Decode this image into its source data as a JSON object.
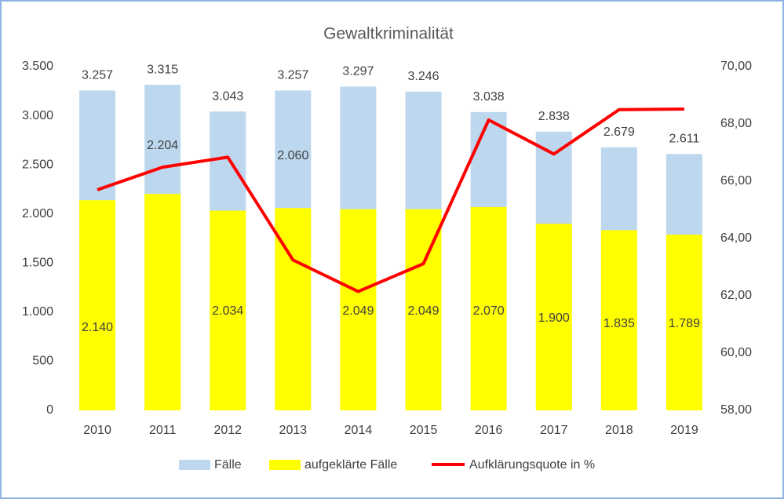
{
  "chart_data": {
    "type": "bar",
    "title": "Gewaltkriminalität",
    "categories": [
      "2010",
      "2011",
      "2012",
      "2013",
      "2014",
      "2015",
      "2016",
      "2017",
      "2018",
      "2019"
    ],
    "series": [
      {
        "name": "Fälle",
        "color": "#bdd7ee",
        "type": "bar",
        "values": [
          3257,
          3315,
          3043,
          3257,
          3297,
          3246,
          3038,
          2838,
          2679,
          2611
        ],
        "value_labels": [
          "3.257",
          "3.315",
          "3.043",
          "3.257",
          "3.297",
          "3.246",
          "3.038",
          "2.838",
          "2.679",
          "2.611"
        ]
      },
      {
        "name": "aufgeklärte Fälle",
        "color": "#ffff00",
        "type": "bar",
        "values": [
          2140,
          2204,
          2034,
          2060,
          2049,
          2049,
          2070,
          1900,
          1835,
          1789
        ],
        "value_labels": [
          "2.140",
          "2.204",
          "2.034",
          "2.060",
          "2.049",
          "2.049",
          "2.070",
          "1.900",
          "1.835",
          "1.789"
        ]
      },
      {
        "name": "Aufklärungsquote in %",
        "color": "#ff0000",
        "type": "line",
        "axis": "y2",
        "values": [
          65.7,
          66.49,
          66.84,
          63.25,
          62.15,
          63.12,
          68.14,
          66.95,
          68.5,
          68.52
        ]
      }
    ],
    "ylim": [
      0,
      3500
    ],
    "yticks": [
      0,
      500,
      {
        "value": 1000,
        "label": "1.000"
      },
      {
        "value": 1500,
        "label": "1.500"
      },
      {
        "value": 2000,
        "label": "2.000"
      },
      {
        "value": 2500,
        "label": "2.500"
      },
      {
        "value": 3000,
        "label": "3.000"
      },
      {
        "value": 3500,
        "label": "3.500"
      }
    ],
    "y2lim": [
      58,
      70
    ],
    "y2ticks": [
      {
        "value": 58,
        "label": "58,00"
      },
      {
        "value": 60,
        "label": "60,00"
      },
      {
        "value": 62,
        "label": "62,00"
      },
      {
        "value": 64,
        "label": "64,00"
      },
      {
        "value": 66,
        "label": "66,00"
      },
      {
        "value": 68,
        "label": "68,00"
      },
      {
        "value": 70,
        "label": "70,00"
      }
    ],
    "legend": "bottom"
  }
}
